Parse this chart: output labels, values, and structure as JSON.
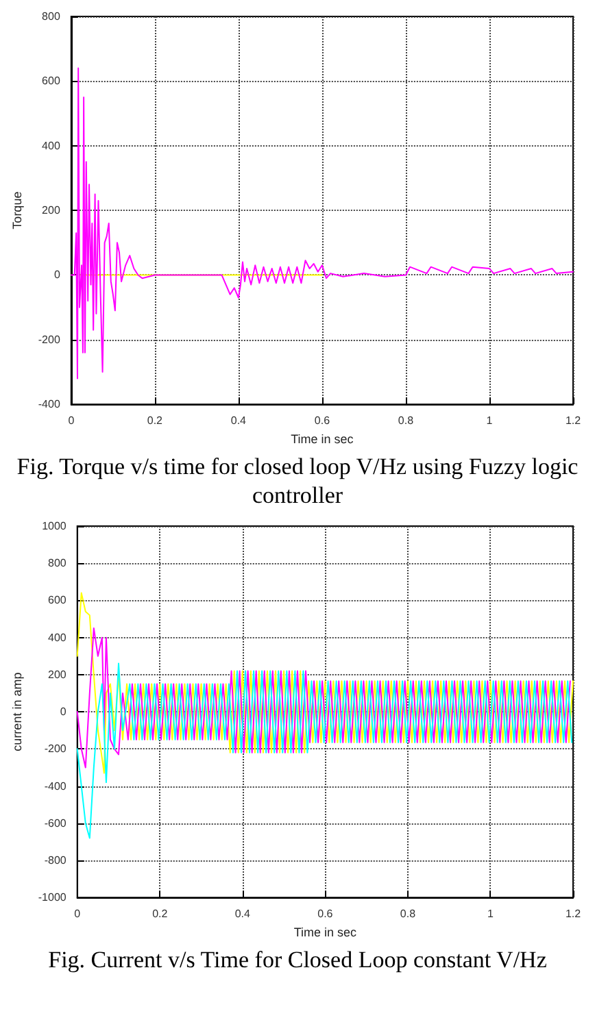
{
  "chart_data": [
    {
      "type": "line",
      "title": "Fig. Torque v/s time for closed loop V/Hz using Fuzzy logic controller",
      "xlabel": "Time in sec",
      "ylabel": "Torque",
      "xlim": [
        0,
        1.2
      ],
      "xticks": [
        0,
        0.2,
        0.4,
        0.6,
        0.8,
        1,
        1.2
      ],
      "ylim": [
        -400,
        800
      ],
      "yticks": [
        -400,
        -200,
        0,
        200,
        400,
        600,
        800
      ],
      "grid": true,
      "series": [
        {
          "color": "#ffff00",
          "x": [
            0.02,
            0.6
          ],
          "values": [
            0,
            0
          ]
        },
        {
          "color": "#ff00ff",
          "x": [
            0,
            0.008,
            0.012,
            0.015,
            0.017,
            0.02,
            0.025,
            0.028,
            0.03,
            0.033,
            0.036,
            0.04,
            0.043,
            0.047,
            0.05,
            0.053,
            0.057,
            0.06,
            0.065,
            0.07,
            0.075,
            0.08,
            0.085,
            0.09,
            0.095,
            0.1,
            0.105,
            0.11,
            0.115,
            0.12,
            0.13,
            0.14,
            0.15,
            0.16,
            0.17,
            0.2,
            0.25,
            0.3,
            0.36,
            0.37,
            0.38,
            0.39,
            0.4,
            0.405,
            0.41,
            0.415,
            0.42,
            0.43,
            0.44,
            0.45,
            0.46,
            0.47,
            0.48,
            0.49,
            0.5,
            0.51,
            0.52,
            0.53,
            0.54,
            0.55,
            0.56,
            0.57,
            0.58,
            0.59,
            0.6,
            0.61,
            0.62,
            0.65,
            0.7,
            0.75,
            0.8,
            0.81,
            0.85,
            0.86,
            0.9,
            0.91,
            0.95,
            0.96,
            1.0,
            1.01,
            1.05,
            1.06,
            1.1,
            1.11,
            1.15,
            1.16,
            1.2
          ],
          "values": [
            0,
            0,
            130,
            -320,
            640,
            -100,
            30,
            -240,
            550,
            -240,
            350,
            -80,
            280,
            -30,
            160,
            -170,
            250,
            -120,
            230,
            -50,
            -300,
            100,
            120,
            160,
            -20,
            -60,
            -110,
            100,
            70,
            -20,
            30,
            60,
            20,
            0,
            -10,
            0,
            0,
            0,
            0,
            -30,
            -60,
            -40,
            -70,
            -30,
            40,
            -20,
            20,
            -30,
            30,
            -25,
            25,
            -20,
            20,
            -25,
            25,
            -25,
            25,
            -25,
            25,
            -25,
            45,
            20,
            35,
            10,
            30,
            -10,
            5,
            -5,
            5,
            -5,
            0,
            25,
            5,
            25,
            5,
            25,
            5,
            25,
            20,
            5,
            20,
            5,
            20,
            5,
            20,
            5,
            10
          ]
        }
      ]
    },
    {
      "type": "line",
      "title": "Fig. Current v/s Time for Closed Loop constant V/Hz",
      "xlabel": "Time in sec",
      "ylabel": "current in amp",
      "xlim": [
        0,
        1.2
      ],
      "xticks": [
        0,
        0.2,
        0.4,
        0.6,
        0.8,
        1,
        1.2
      ],
      "ylim": [
        -1000,
        1000
      ],
      "yticks": [
        -1000,
        -800,
        -600,
        -400,
        -200,
        0,
        200,
        400,
        600,
        800,
        1000
      ],
      "grid": true,
      "series": [
        {
          "color": "#ffff00",
          "x": [
            0,
            0.01,
            0.02,
            0.03,
            0.04,
            0.05,
            0.06,
            0.065,
            0.07,
            0.08,
            0.09,
            0.1,
            0.11,
            0.12,
            0.13,
            0.14,
            0.15,
            0.16,
            0.17,
            0.18,
            0.19,
            0.2,
            0.21,
            0.22,
            0.23,
            0.24,
            0.25,
            0.26,
            0.27,
            0.28,
            0.29,
            0.3,
            0.31,
            0.32,
            0.33,
            0.34,
            0.35,
            0.36,
            0.37,
            0.38,
            0.39,
            0.4,
            0.41,
            0.42,
            0.43,
            0.44,
            0.45,
            0.46,
            0.47,
            0.48,
            0.49,
            0.5,
            0.51,
            0.52,
            0.53,
            0.54,
            0.55,
            0.56,
            0.57,
            0.58,
            0.59,
            0.6,
            0.61,
            0.62,
            0.63,
            0.64,
            0.65,
            0.66,
            0.67,
            0.68,
            0.69,
            0.7,
            0.71,
            0.72,
            0.73,
            0.74,
            0.75,
            0.76,
            0.77,
            0.78,
            0.79,
            0.8,
            0.81,
            0.82,
            0.83,
            0.84,
            0.85,
            0.86,
            0.87,
            0.88,
            0.89,
            0.9,
            0.91,
            0.92,
            0.93,
            0.94,
            0.95,
            0.96,
            0.97,
            0.98,
            0.99,
            1.0,
            1.01,
            1.02,
            1.03,
            1.04,
            1.05,
            1.06,
            1.07,
            1.08,
            1.09,
            1.1,
            1.11,
            1.12,
            1.13,
            1.14,
            1.15,
            1.16,
            1.17,
            1.18,
            1.19,
            1.2
          ],
          "values": [
            300,
            640,
            540,
            520,
            200,
            -100,
            -250,
            -330,
            100,
            150,
            -100,
            200,
            -150,
            150,
            -150,
            150,
            -150,
            150,
            -150,
            150,
            -150,
            150,
            -150,
            150,
            -150,
            150,
            -150,
            150,
            -150,
            150,
            -150,
            150,
            -150,
            150,
            -150,
            150,
            -150,
            150,
            -220,
            220,
            -220,
            220,
            -220,
            220,
            -220,
            220,
            -220,
            220,
            -220,
            220,
            -220,
            220,
            -220,
            220,
            -220,
            220,
            -220,
            165,
            -165,
            165,
            -165,
            165,
            -165,
            165,
            -165,
            165,
            -165,
            165,
            -165,
            165,
            -165,
            165,
            -165,
            165,
            -165,
            165,
            -165,
            165,
            -165,
            165,
            -165,
            165,
            -165,
            165,
            -165,
            165,
            -165,
            165,
            -165,
            165,
            -165,
            165,
            -165,
            165,
            -165,
            165,
            -165,
            165,
            -165,
            165,
            -165,
            165,
            -165,
            165,
            -165,
            165,
            -165,
            165,
            -165,
            165,
            -165,
            165,
            -165,
            165,
            -165,
            165,
            -165,
            165,
            -165,
            165,
            -165,
            165
          ]
        },
        {
          "color": "#ff00ff",
          "x": [
            0,
            0.01,
            0.02,
            0.03,
            0.04,
            0.05,
            0.06,
            0.065,
            0.07,
            0.08,
            0.09,
            0.1,
            0.11,
            0.123,
            0.133,
            0.143,
            0.153,
            0.163,
            0.173,
            0.183,
            0.193,
            0.203,
            0.213,
            0.223,
            0.233,
            0.243,
            0.253,
            0.263,
            0.273,
            0.283,
            0.293,
            0.303,
            0.313,
            0.323,
            0.333,
            0.343,
            0.353,
            0.363,
            0.373,
            0.383,
            0.393,
            0.403,
            0.413,
            0.423,
            0.433,
            0.443,
            0.453,
            0.463,
            0.473,
            0.483,
            0.493,
            0.503,
            0.513,
            0.523,
            0.533,
            0.543,
            0.553,
            0.563,
            0.573,
            0.583,
            0.593,
            0.603,
            0.613,
            0.623,
            0.633,
            0.643,
            0.653,
            0.663,
            0.673,
            0.683,
            0.693,
            0.703,
            0.713,
            0.723,
            0.733,
            0.743,
            0.753,
            0.763,
            0.773,
            0.783,
            0.793,
            0.803,
            0.813,
            0.823,
            0.833,
            0.843,
            0.853,
            0.863,
            0.873,
            0.883,
            0.893,
            0.903,
            0.913,
            0.923,
            0.933,
            0.943,
            0.953,
            0.963,
            0.973,
            0.983,
            0.993,
            1.003,
            1.013,
            1.023,
            1.033,
            1.043,
            1.053,
            1.063,
            1.073,
            1.083,
            1.093,
            1.103,
            1.113,
            1.123,
            1.133,
            1.143,
            1.153,
            1.163,
            1.173,
            1.183,
            1.193
          ],
          "values": [
            0,
            -200,
            -300,
            100,
            450,
            300,
            400,
            -100,
            400,
            -150,
            -200,
            -230,
            100,
            -150,
            150,
            -150,
            150,
            -150,
            150,
            -150,
            150,
            -150,
            150,
            -150,
            150,
            -150,
            150,
            -150,
            150,
            -150,
            150,
            -150,
            150,
            -150,
            150,
            -150,
            150,
            -150,
            220,
            -220,
            220,
            -220,
            220,
            -220,
            220,
            -220,
            220,
            -220,
            220,
            -220,
            220,
            -220,
            220,
            -220,
            220,
            -220,
            220,
            -165,
            165,
            -165,
            165,
            -165,
            165,
            -165,
            165,
            -165,
            165,
            -165,
            165,
            -165,
            165,
            -165,
            165,
            -165,
            165,
            -165,
            165,
            -165,
            165,
            -165,
            165,
            -165,
            165,
            -165,
            165,
            -165,
            165,
            -165,
            165,
            -165,
            165,
            -165,
            165,
            -165,
            165,
            -165,
            165,
            -165,
            165,
            -165,
            165,
            -165,
            165,
            -165,
            165,
            -165,
            165,
            -165,
            165,
            -165,
            165,
            -165,
            165,
            -165,
            165,
            -165,
            165,
            -165,
            165,
            -165,
            165
          ]
        },
        {
          "color": "#00ffff",
          "x": [
            0,
            0.01,
            0.02,
            0.03,
            0.04,
            0.05,
            0.06,
            0.065,
            0.07,
            0.08,
            0.09,
            0.1,
            0.11,
            0.127,
            0.137,
            0.147,
            0.157,
            0.167,
            0.177,
            0.187,
            0.197,
            0.207,
            0.217,
            0.227,
            0.237,
            0.247,
            0.257,
            0.267,
            0.277,
            0.287,
            0.297,
            0.307,
            0.317,
            0.327,
            0.337,
            0.347,
            0.357,
            0.367,
            0.377,
            0.387,
            0.397,
            0.407,
            0.417,
            0.427,
            0.437,
            0.447,
            0.457,
            0.467,
            0.477,
            0.487,
            0.497,
            0.507,
            0.517,
            0.527,
            0.537,
            0.547,
            0.557,
            0.567,
            0.577,
            0.587,
            0.597,
            0.607,
            0.617,
            0.627,
            0.637,
            0.647,
            0.657,
            0.667,
            0.677,
            0.687,
            0.697,
            0.707,
            0.717,
            0.727,
            0.737,
            0.747,
            0.757,
            0.767,
            0.777,
            0.787,
            0.797,
            0.807,
            0.817,
            0.827,
            0.837,
            0.847,
            0.857,
            0.867,
            0.877,
            0.887,
            0.897,
            0.907,
            0.917,
            0.927,
            0.937,
            0.947,
            0.957,
            0.967,
            0.977,
            0.987,
            0.997,
            1.007,
            1.017,
            1.027,
            1.037,
            1.047,
            1.057,
            1.067,
            1.077,
            1.087,
            1.097,
            1.107,
            1.117,
            1.127,
            1.137,
            1.147,
            1.157,
            1.167,
            1.177,
            1.187,
            1.197
          ],
          "values": [
            -200,
            -400,
            -600,
            -680,
            -300,
            0,
            150,
            -100,
            -380,
            100,
            -200,
            260,
            -100,
            150,
            -150,
            150,
            -150,
            150,
            -150,
            150,
            -150,
            150,
            -150,
            150,
            -150,
            150,
            -150,
            150,
            -150,
            150,
            -150,
            150,
            -150,
            150,
            -150,
            150,
            -150,
            150,
            -220,
            220,
            -220,
            220,
            -220,
            220,
            -220,
            220,
            -220,
            220,
            -220,
            220,
            -220,
            220,
            -220,
            220,
            -220,
            220,
            -220,
            165,
            -165,
            165,
            -165,
            165,
            -165,
            165,
            -165,
            165,
            -165,
            165,
            -165,
            165,
            -165,
            165,
            -165,
            165,
            -165,
            165,
            -165,
            165,
            -165,
            165,
            -165,
            165,
            -165,
            165,
            -165,
            165,
            -165,
            165,
            -165,
            165,
            -165,
            165,
            -165,
            165,
            -165,
            165,
            -165,
            165,
            -165,
            165,
            -165,
            165,
            -165,
            165,
            -165,
            165,
            -165,
            165,
            -165,
            165,
            -165,
            165,
            -165,
            165,
            -165,
            165,
            -165,
            165,
            -165,
            165,
            -165
          ]
        }
      ]
    }
  ]
}
